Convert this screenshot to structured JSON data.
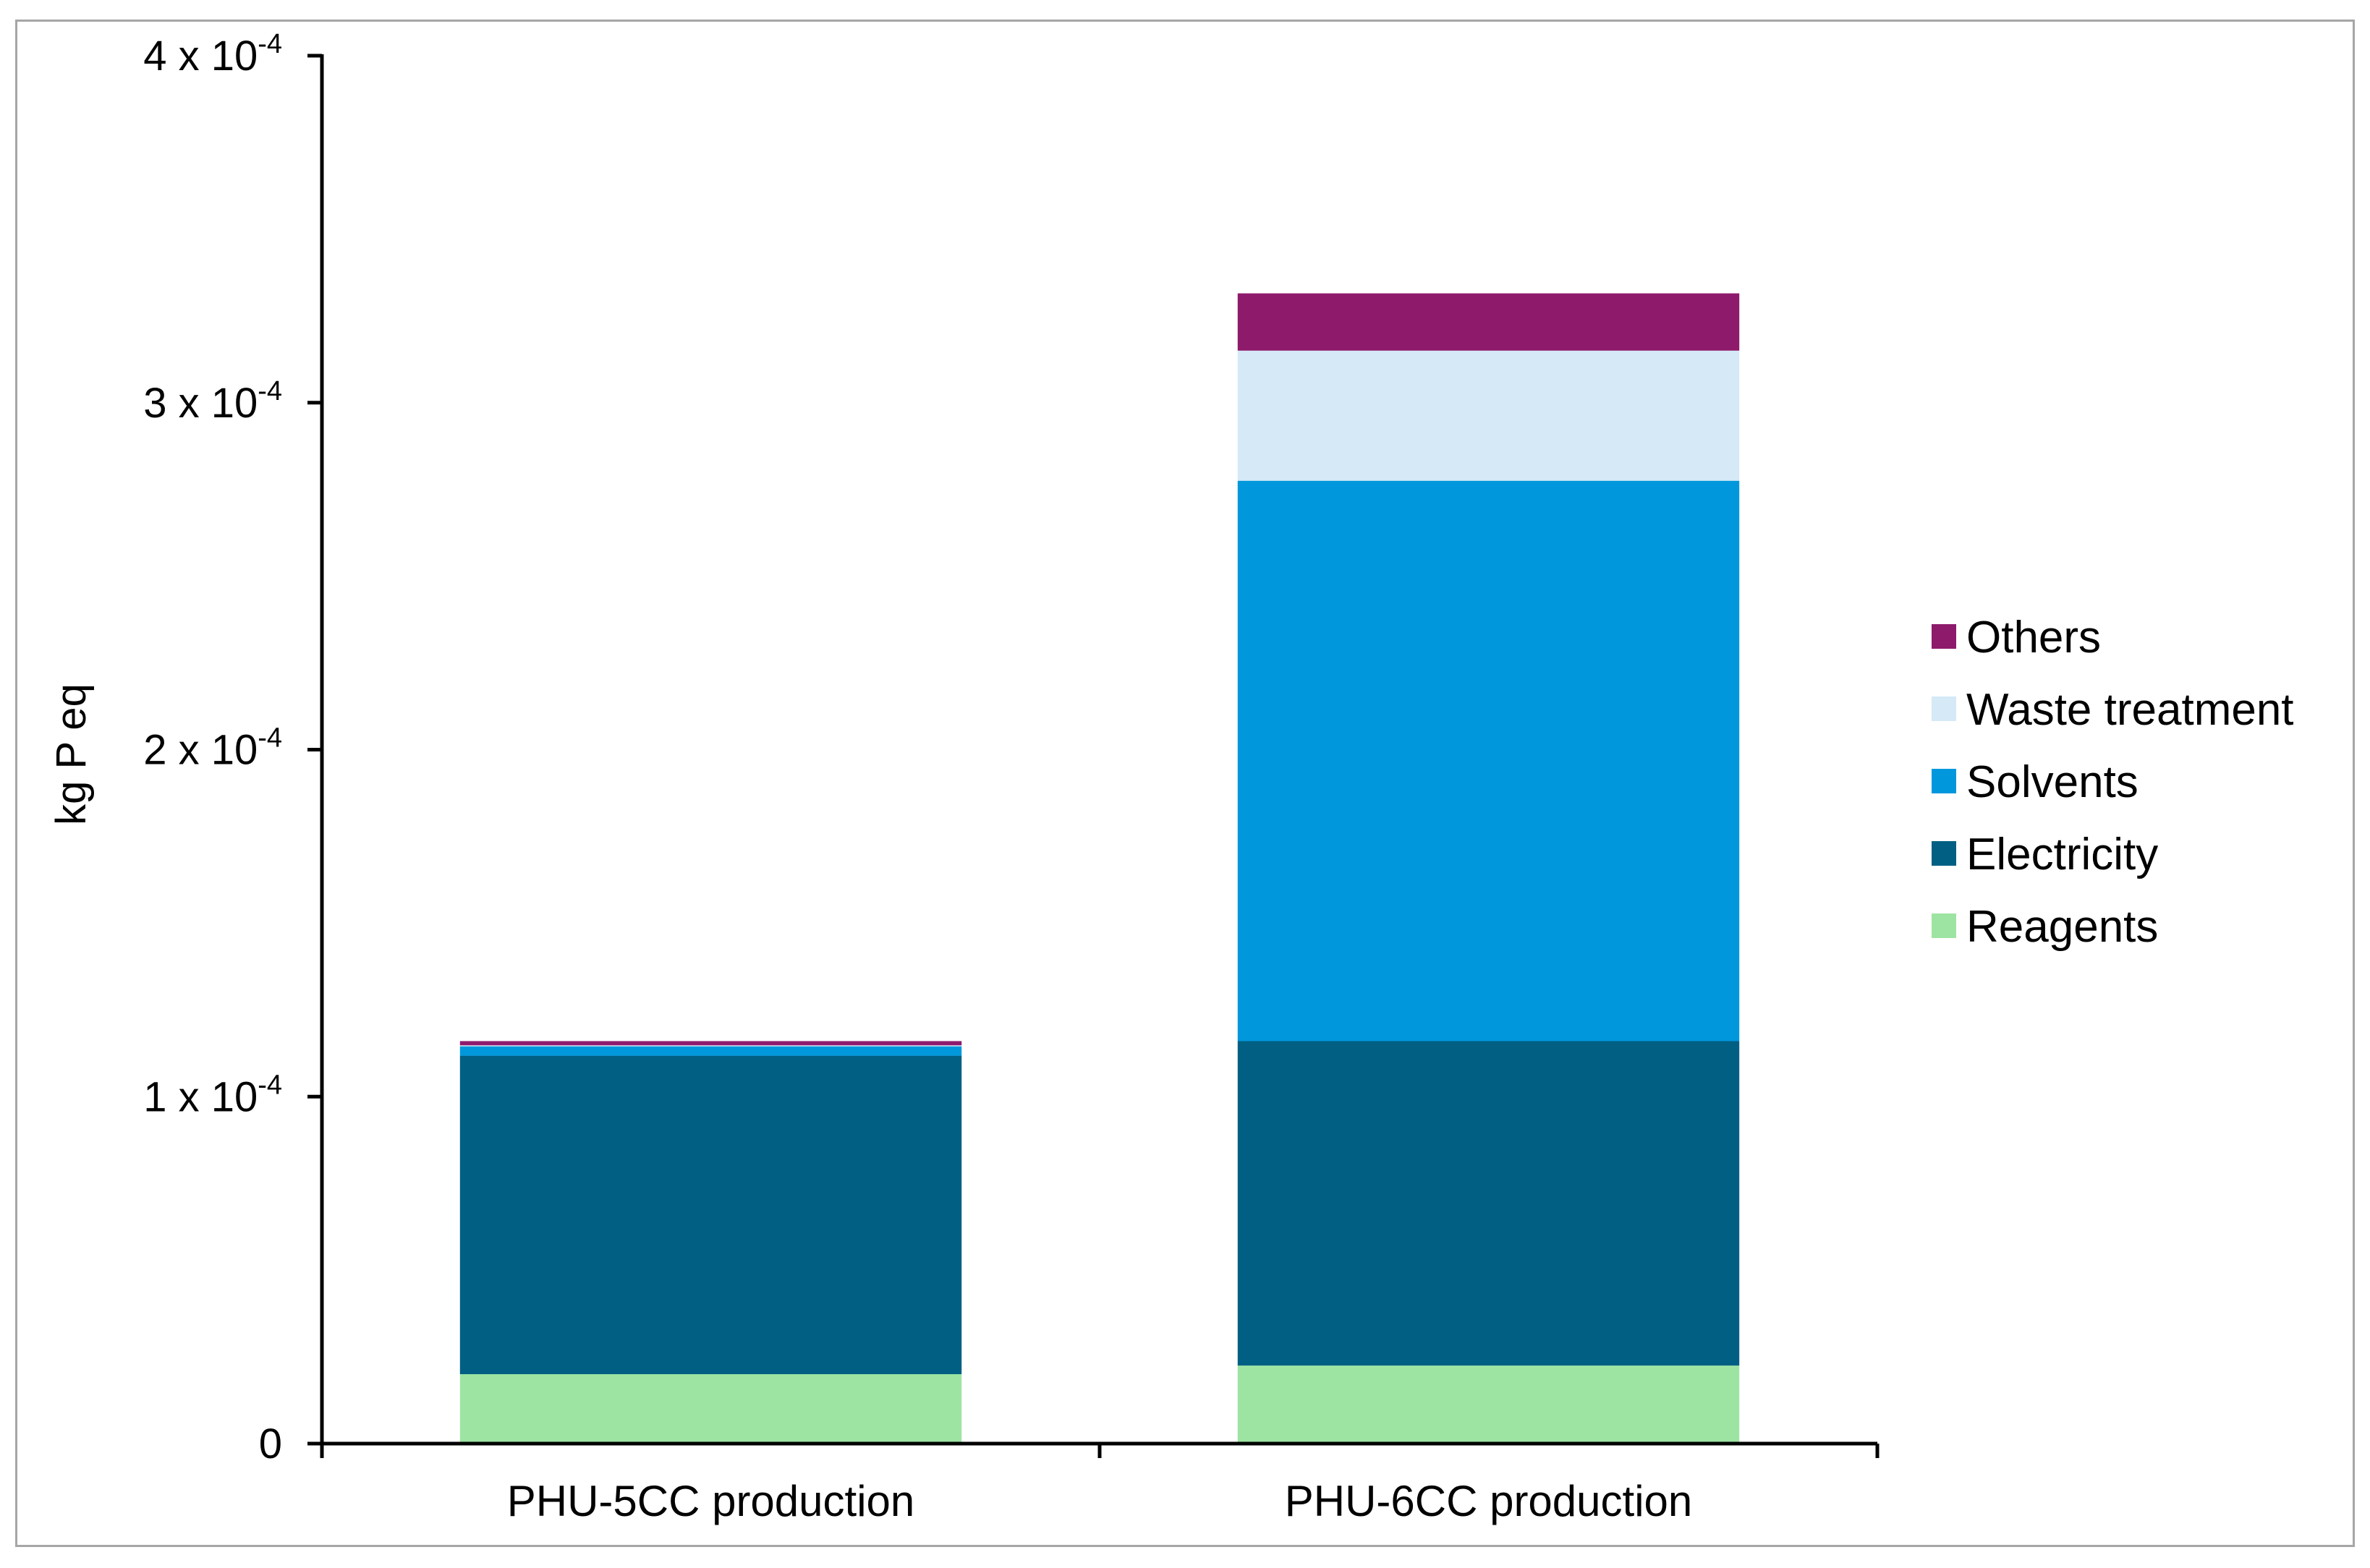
{
  "chart_data": {
    "type": "bar",
    "stacked": true,
    "title": "",
    "xlabel": "",
    "ylabel": "kg P eq",
    "ylim": [
      0,
      0.0004
    ],
    "yticks": [
      {
        "value": 0,
        "mantissa": "0",
        "exponent": ""
      },
      {
        "value": 0.0001,
        "mantissa": "1 x 10",
        "exponent": "-4"
      },
      {
        "value": 0.0002,
        "mantissa": "2 x 10",
        "exponent": "-4"
      },
      {
        "value": 0.0003,
        "mantissa": "3 x 10",
        "exponent": "-4"
      },
      {
        "value": 0.0004,
        "mantissa": "4 x 10",
        "exponent": "-4"
      }
    ],
    "categories": [
      "PHU-5CC production",
      "PHU-6CC production"
    ],
    "series": [
      {
        "name": "Reagents",
        "color": "#9de4a3",
        "values": [
          2e-05,
          2.25e-05
        ]
      },
      {
        "name": "Electricity",
        "color": "#005f83",
        "values": [
          9.18e-05,
          9.35e-05
        ]
      },
      {
        "name": "Solvents",
        "color": "#0097dc",
        "values": [
          2.7e-06,
          0.0001615
        ]
      },
      {
        "name": "Waste treatment",
        "color": "#d5e9f7",
        "values": [
          3e-07,
          3.75e-05
        ]
      },
      {
        "name": "Others",
        "color": "#8e1a6c",
        "values": [
          1.2e-06,
          1.65e-05
        ]
      }
    ],
    "legend": {
      "position": "right",
      "order": [
        "Others",
        "Waste treatment",
        "Solvents",
        "Electricity",
        "Reagents"
      ]
    },
    "grid": false
  }
}
